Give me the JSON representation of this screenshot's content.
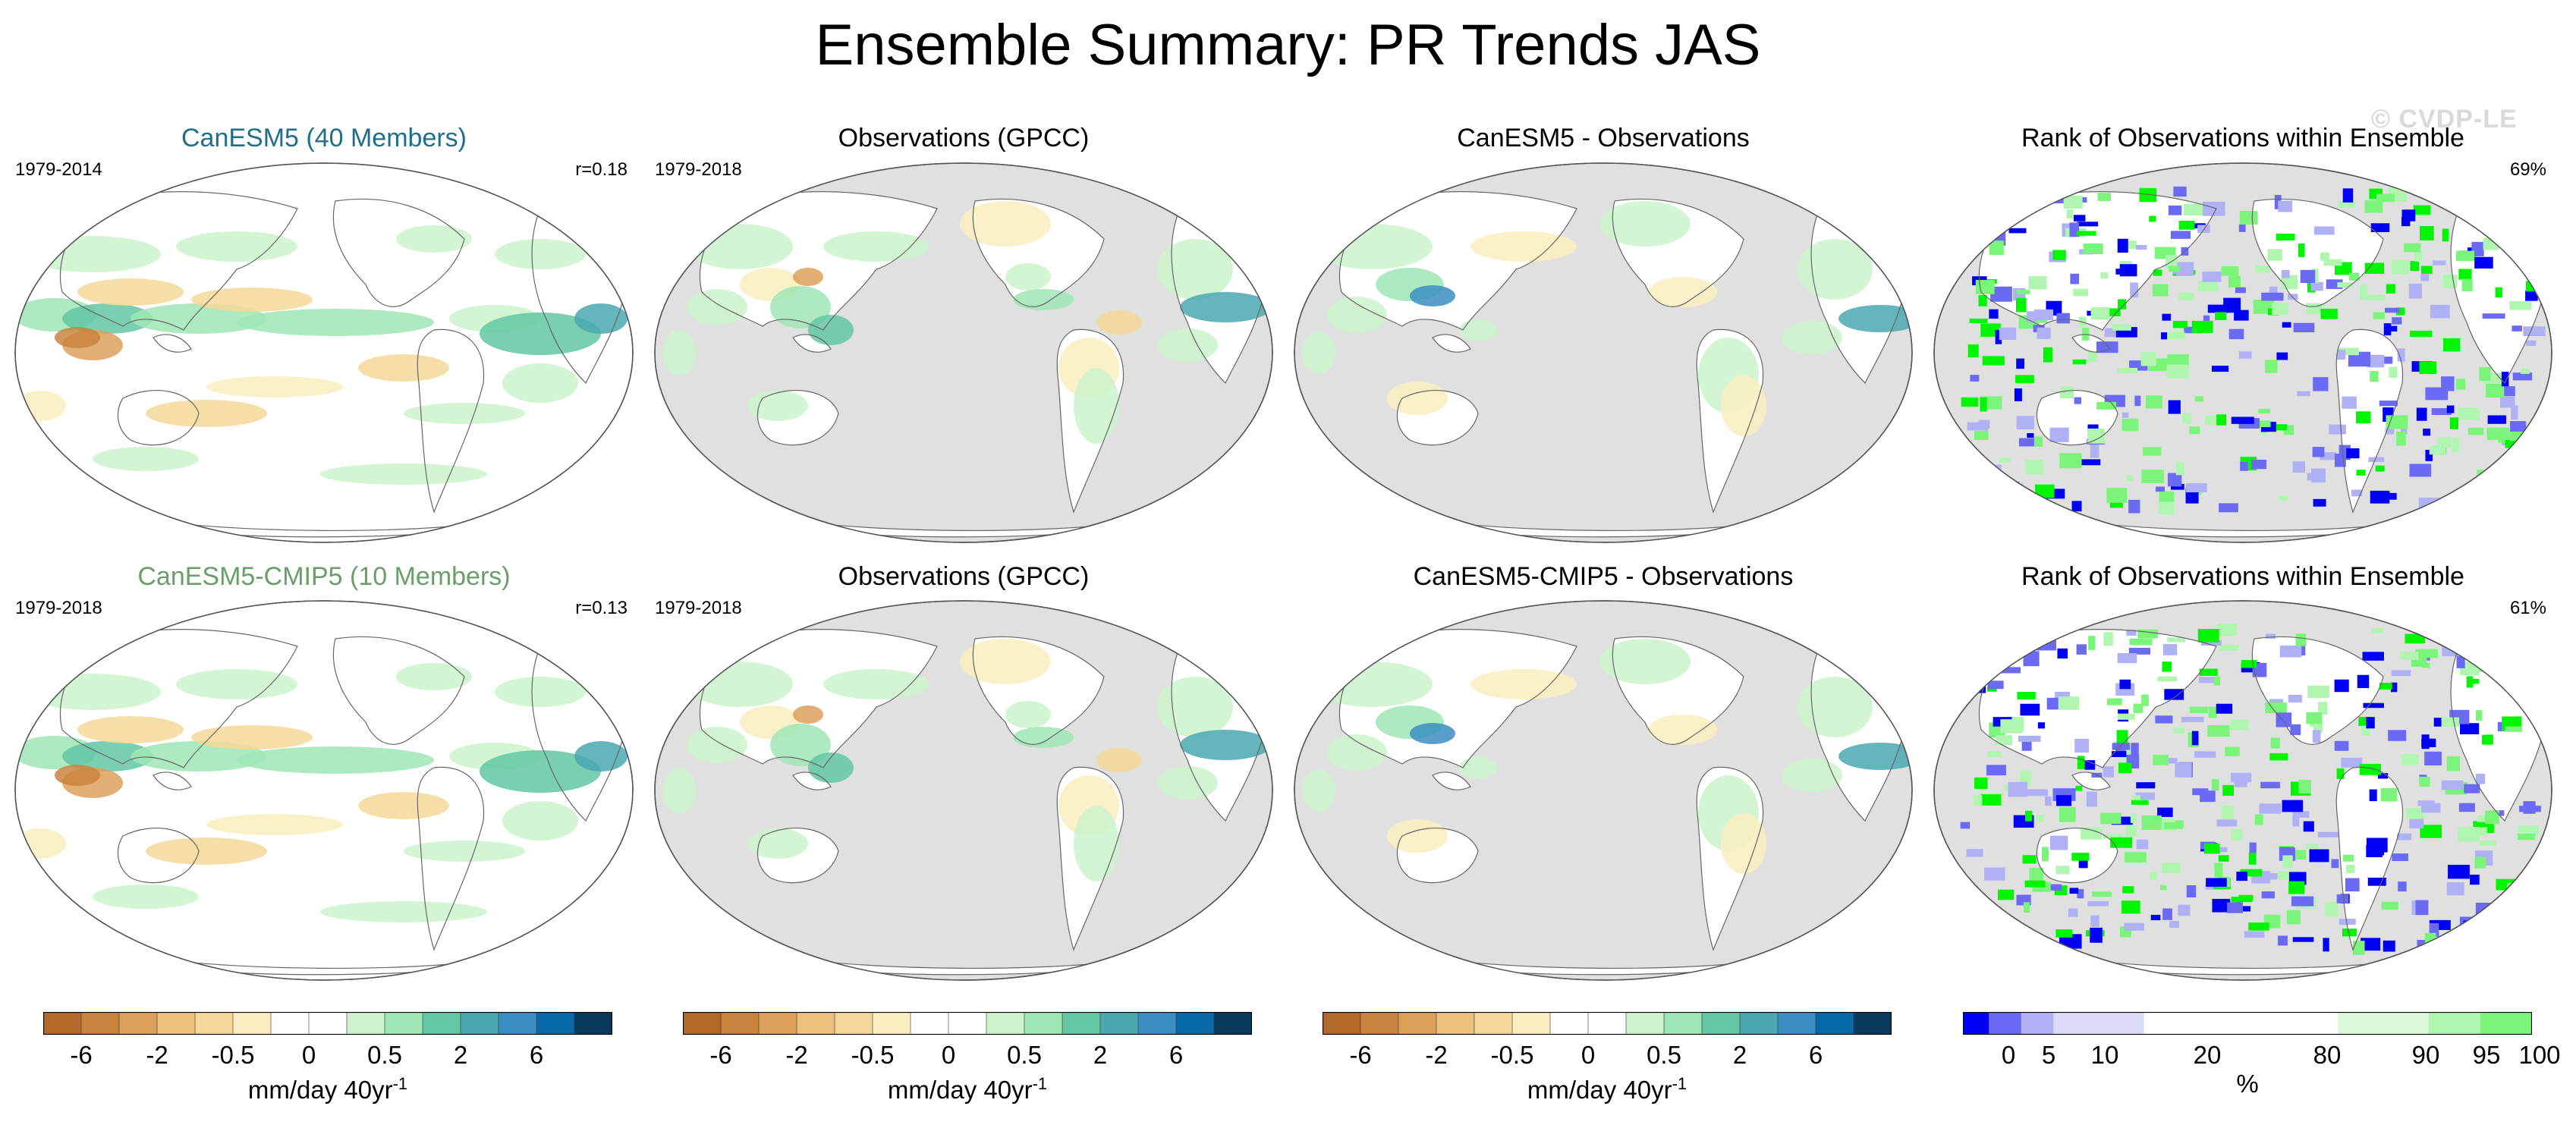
{
  "page": {
    "title": "Ensemble Summary: PR Trends JAS",
    "watermark": "© CVDP-LE"
  },
  "colors": {
    "trend_scale": [
      "#b2692a",
      "#c8843e",
      "#dca05a",
      "#edc07c",
      "#f5d899",
      "#faeec0",
      "#ffffff",
      "#ffffff",
      "#cdf3cd",
      "#9fe6b6",
      "#62c7a2",
      "#4aa8b0",
      "#3b8fc2",
      "#0a6aa8",
      "#0a3a5c"
    ],
    "rank_scale": [
      "#0000f5",
      "#6a6af5",
      "#b0b0f5",
      "#dcdcfa",
      "#ffffff",
      "#ffffff",
      "#dcfadc",
      "#b0f5b0",
      "#7af57a",
      "#00f500"
    ],
    "ocean_obs": "#e0e0e0",
    "ocean_model": "#ffffff",
    "panel1_title_top": "#1f6f8b",
    "panel1_title_bottom": "#6b9e6b"
  },
  "rows": [
    {
      "panels": [
        {
          "title": "CanESM5 (40 Members)",
          "years": "1979-2014",
          "right_label": "r=0.18",
          "kind": "model"
        },
        {
          "title": "Observations (GPCC)",
          "years": "1979-2018",
          "right_label": "",
          "kind": "obs"
        },
        {
          "title": "CanESM5 - Observations",
          "years": "",
          "right_label": "",
          "kind": "diff"
        },
        {
          "title": "Rank of Observations within Ensemble",
          "years": "",
          "right_label": "69%",
          "kind": "rank"
        }
      ]
    },
    {
      "panels": [
        {
          "title": "CanESM5-CMIP5 (10 Members)",
          "years": "1979-2018",
          "right_label": "r=0.13",
          "kind": "model"
        },
        {
          "title": "Observations (GPCC)",
          "years": "1979-2018",
          "right_label": "",
          "kind": "obs"
        },
        {
          "title": "CanESM5-CMIP5 - Observations",
          "years": "",
          "right_label": "",
          "kind": "diff"
        },
        {
          "title": "Rank of Observations within Ensemble",
          "years": "",
          "right_label": "61%",
          "kind": "rank"
        }
      ]
    }
  ],
  "colorbars": {
    "trend": {
      "ticks": [
        "-6",
        "-2",
        "-0.5",
        "0",
        "0.5",
        "2",
        "6"
      ],
      "label": "mm/day 40yr",
      "label_sup": "-1"
    },
    "rank": {
      "ticks": [
        "0",
        "5",
        "10",
        "20",
        "80",
        "90",
        "95",
        "100"
      ],
      "label": "%"
    }
  },
  "chart_data": {
    "type": "heatmap",
    "title": "Ensemble Summary: PR Trends JAS",
    "variable": "PR (precipitation) trends, JAS season",
    "panels": [
      {
        "row": 1,
        "col": 1,
        "title": "CanESM5 (40 Members)",
        "period": "1979-2014",
        "pattern_correlation": 0.18
      },
      {
        "row": 1,
        "col": 2,
        "title": "Observations (GPCC)",
        "period": "1979-2018"
      },
      {
        "row": 1,
        "col": 3,
        "title": "CanESM5 - Observations"
      },
      {
        "row": 1,
        "col": 4,
        "title": "Rank of Observations within Ensemble",
        "summary_percent": 69
      },
      {
        "row": 2,
        "col": 1,
        "title": "CanESM5-CMIP5 (10 Members)",
        "period": "1979-2018",
        "pattern_correlation": 0.13
      },
      {
        "row": 2,
        "col": 2,
        "title": "Observations (GPCC)",
        "period": "1979-2018"
      },
      {
        "row": 2,
        "col": 3,
        "title": "CanESM5-CMIP5 - Observations"
      },
      {
        "row": 2,
        "col": 4,
        "title": "Rank of Observations within Ensemble",
        "summary_percent": 61
      }
    ],
    "colorbar_trend": {
      "units": "mm/day 40yr-1",
      "tick_labels": [
        -6,
        -2,
        -0.5,
        0,
        0.5,
        2,
        6
      ],
      "range": [
        -6,
        6
      ]
    },
    "colorbar_rank": {
      "units": "%",
      "tick_labels": [
        0,
        5,
        10,
        20,
        80,
        90,
        95,
        100
      ],
      "range": [
        0,
        100
      ]
    }
  }
}
